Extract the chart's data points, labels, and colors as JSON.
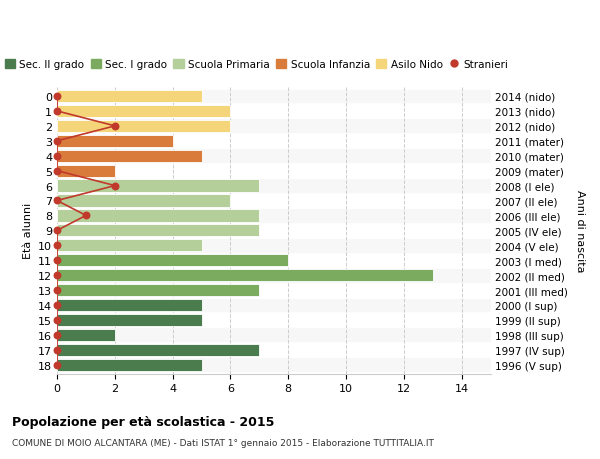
{
  "ages": [
    18,
    17,
    16,
    15,
    14,
    13,
    12,
    11,
    10,
    9,
    8,
    7,
    6,
    5,
    4,
    3,
    2,
    1,
    0
  ],
  "right_labels": [
    "1996 (V sup)",
    "1997 (IV sup)",
    "1998 (III sup)",
    "1999 (II sup)",
    "2000 (I sup)",
    "2001 (III med)",
    "2002 (II med)",
    "2003 (I med)",
    "2004 (V ele)",
    "2005 (IV ele)",
    "2006 (III ele)",
    "2007 (II ele)",
    "2008 (I ele)",
    "2009 (mater)",
    "2010 (mater)",
    "2011 (mater)",
    "2012 (nido)",
    "2013 (nido)",
    "2014 (nido)"
  ],
  "bar_values": [
    5,
    7,
    2,
    5,
    5,
    7,
    13,
    8,
    5,
    7,
    7,
    6,
    7,
    2,
    5,
    4,
    6,
    6,
    5
  ],
  "bar_colors": [
    "#4a7c4e",
    "#4a7c4e",
    "#4a7c4e",
    "#4a7c4e",
    "#4a7c4e",
    "#7aab5e",
    "#7aab5e",
    "#7aab5e",
    "#b5cf9a",
    "#b5cf9a",
    "#b5cf9a",
    "#b5cf9a",
    "#b5cf9a",
    "#d97b3a",
    "#d97b3a",
    "#d97b3a",
    "#f5d57a",
    "#f5d57a",
    "#f5d57a"
  ],
  "stranieri_values": [
    0,
    0,
    0,
    0,
    0,
    0,
    0,
    0,
    0,
    0,
    1,
    0,
    2,
    0,
    0,
    0,
    2,
    0,
    0
  ],
  "title_bold": "Popolazione per età scolastica - 2015",
  "subtitle": "COMUNE DI MOIO ALCANTARA (ME) - Dati ISTAT 1° gennaio 2015 - Elaborazione TUTTITALIA.IT",
  "ylabel": "Età alunni",
  "ylabel_right": "Anni di nascita",
  "xlim": [
    0,
    15
  ],
  "xticks": [
    0,
    2,
    4,
    6,
    8,
    10,
    12,
    14
  ],
  "legend_labels": [
    "Sec. II grado",
    "Sec. I grado",
    "Scuola Primaria",
    "Scuola Infanzia",
    "Asilo Nido",
    "Stranieri"
  ],
  "legend_colors": [
    "#4a7c4e",
    "#7aab5e",
    "#b5cf9a",
    "#d97b3a",
    "#f5d57a",
    "#c0392b"
  ],
  "bar_height": 0.82,
  "bg_color": "#ffffff",
  "grid_color": "#cccccc",
  "stranieri_color": "#c0392b",
  "row_alt_color": "#f0f0f0"
}
